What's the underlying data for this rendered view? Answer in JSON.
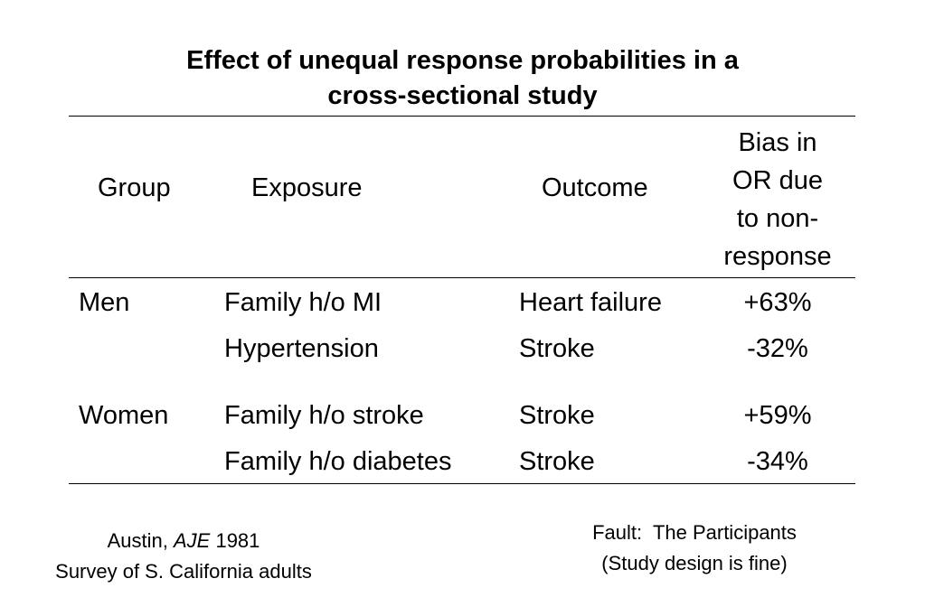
{
  "title": {
    "line1": "Effect of unequal response probabilities in a",
    "line2": "cross-sectional study"
  },
  "table": {
    "headers": {
      "group": "Group",
      "exposure": "Exposure",
      "outcome": "Outcome",
      "bias": [
        "Bias in",
        "OR due",
        "to non-",
        "response"
      ]
    },
    "rows": [
      {
        "group": "Men",
        "exposure": "Family h/o MI",
        "outcome": "Heart failure",
        "bias": "+63%"
      },
      {
        "group": "",
        "exposure": "Hypertension",
        "outcome": "Stroke",
        "bias": "-32%"
      },
      {
        "group": "Women",
        "exposure": "Family h/o stroke",
        "outcome": "Stroke",
        "bias": "+59%"
      },
      {
        "group": "",
        "exposure": "Family h/o diabetes",
        "outcome": "Stroke",
        "bias": "-34%"
      }
    ]
  },
  "footer_left": {
    "author": "Austin,",
    "journal": "AJE",
    "year": "1981",
    "line2": "Survey of S. California adults"
  },
  "footer_right": {
    "line1": "Fault:  The Participants",
    "line2": "(Study design is fine)"
  }
}
